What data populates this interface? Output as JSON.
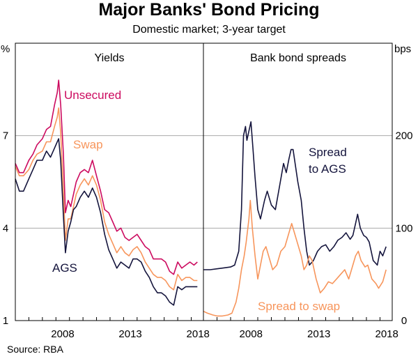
{
  "title": "Major Banks' Bond Pricing",
  "subtitle": "Domestic market; 3-year target",
  "source": "Source:   RBA",
  "chart_data": [
    {
      "type": "line",
      "panel_title": "Yields",
      "unit_label": "%",
      "ylim": [
        1,
        10
      ],
      "yticks": [
        1,
        4,
        7
      ],
      "xlim": [
        2005.0,
        2018.9
      ],
      "xticks": [
        2008,
        2013,
        2018
      ],
      "tick_labels": [
        "2008",
        "2013",
        "2018"
      ],
      "series": [
        {
          "name": "Unsecured",
          "label": "Unsecured",
          "color": "#cc0a5f",
          "points": [
            [
              2005.0,
              6.1
            ],
            [
              2005.3,
              5.8
            ],
            [
              2005.6,
              5.8
            ],
            [
              2006.0,
              6.2
            ],
            [
              2006.3,
              6.4
            ],
            [
              2006.6,
              6.7
            ],
            [
              2007.0,
              6.9
            ],
            [
              2007.3,
              7.2
            ],
            [
              2007.6,
              7.3
            ],
            [
              2007.9,
              8.0
            ],
            [
              2008.1,
              8.4
            ],
            [
              2008.2,
              8.8
            ],
            [
              2008.35,
              8.0
            ],
            [
              2008.55,
              6.4
            ],
            [
              2008.7,
              4.5
            ],
            [
              2008.9,
              4.9
            ],
            [
              2009.1,
              4.7
            ],
            [
              2009.3,
              5.1
            ],
            [
              2009.5,
              5.5
            ],
            [
              2009.8,
              5.8
            ],
            [
              2010.1,
              5.9
            ],
            [
              2010.4,
              5.8
            ],
            [
              2010.7,
              6.2
            ],
            [
              2011.0,
              5.7
            ],
            [
              2011.3,
              5.2
            ],
            [
              2011.6,
              4.6
            ],
            [
              2011.9,
              4.5
            ],
            [
              2012.2,
              4.2
            ],
            [
              2012.5,
              3.9
            ],
            [
              2012.8,
              4.0
            ],
            [
              2013.1,
              3.7
            ],
            [
              2013.4,
              3.6
            ],
            [
              2013.7,
              3.7
            ],
            [
              2014.0,
              3.8
            ],
            [
              2014.3,
              3.6
            ],
            [
              2014.6,
              3.4
            ],
            [
              2014.9,
              3.3
            ],
            [
              2015.2,
              3.0
            ],
            [
              2015.5,
              3.0
            ],
            [
              2015.8,
              3.0
            ],
            [
              2016.1,
              2.9
            ],
            [
              2016.4,
              2.6
            ],
            [
              2016.7,
              2.5
            ],
            [
              2017.0,
              2.9
            ],
            [
              2017.3,
              2.7
            ],
            [
              2017.6,
              2.8
            ],
            [
              2017.9,
              2.9
            ],
            [
              2018.2,
              2.8
            ],
            [
              2018.45,
              2.9
            ]
          ]
        },
        {
          "name": "Swap",
          "label": "Swap",
          "color": "#f7955b",
          "points": [
            [
              2005.0,
              6.0
            ],
            [
              2005.3,
              5.7
            ],
            [
              2005.6,
              5.7
            ],
            [
              2006.0,
              5.9
            ],
            [
              2006.3,
              6.2
            ],
            [
              2006.6,
              6.4
            ],
            [
              2007.0,
              6.5
            ],
            [
              2007.3,
              6.8
            ],
            [
              2007.6,
              6.8
            ],
            [
              2007.9,
              7.3
            ],
            [
              2008.1,
              7.6
            ],
            [
              2008.2,
              7.9
            ],
            [
              2008.35,
              7.1
            ],
            [
              2008.55,
              5.2
            ],
            [
              2008.7,
              3.6
            ],
            [
              2008.9,
              4.3
            ],
            [
              2009.1,
              4.3
            ],
            [
              2009.3,
              4.7
            ],
            [
              2009.5,
              5.1
            ],
            [
              2009.8,
              5.4
            ],
            [
              2010.1,
              5.6
            ],
            [
              2010.4,
              5.4
            ],
            [
              2010.7,
              5.7
            ],
            [
              2011.0,
              5.4
            ],
            [
              2011.3,
              4.9
            ],
            [
              2011.6,
              4.2
            ],
            [
              2011.9,
              3.8
            ],
            [
              2012.2,
              3.5
            ],
            [
              2012.5,
              3.2
            ],
            [
              2012.8,
              3.4
            ],
            [
              2013.1,
              3.2
            ],
            [
              2013.4,
              3.1
            ],
            [
              2013.7,
              3.3
            ],
            [
              2014.0,
              3.4
            ],
            [
              2014.3,
              3.2
            ],
            [
              2014.6,
              2.9
            ],
            [
              2014.9,
              2.7
            ],
            [
              2015.2,
              2.5
            ],
            [
              2015.5,
              2.4
            ],
            [
              2015.8,
              2.4
            ],
            [
              2016.1,
              2.3
            ],
            [
              2016.4,
              2.1
            ],
            [
              2016.7,
              2.0
            ],
            [
              2017.0,
              2.5
            ],
            [
              2017.3,
              2.3
            ],
            [
              2017.6,
              2.4
            ],
            [
              2017.9,
              2.4
            ],
            [
              2018.2,
              2.3
            ],
            [
              2018.45,
              2.3
            ]
          ]
        },
        {
          "name": "AGS",
          "label": "AGS",
          "color": "#14143c",
          "points": [
            [
              2005.0,
              5.6
            ],
            [
              2005.3,
              5.2
            ],
            [
              2005.6,
              5.2
            ],
            [
              2006.0,
              5.6
            ],
            [
              2006.3,
              5.9
            ],
            [
              2006.6,
              6.2
            ],
            [
              2007.0,
              6.2
            ],
            [
              2007.3,
              6.5
            ],
            [
              2007.6,
              6.3
            ],
            [
              2007.9,
              6.6
            ],
            [
              2008.1,
              6.8
            ],
            [
              2008.2,
              6.9
            ],
            [
              2008.35,
              6.2
            ],
            [
              2008.55,
              4.4
            ],
            [
              2008.7,
              3.2
            ],
            [
              2008.9,
              3.9
            ],
            [
              2009.1,
              4.2
            ],
            [
              2009.3,
              4.6
            ],
            [
              2009.5,
              4.7
            ],
            [
              2009.8,
              5.0
            ],
            [
              2010.1,
              5.2
            ],
            [
              2010.4,
              5.0
            ],
            [
              2010.7,
              5.3
            ],
            [
              2011.0,
              5.0
            ],
            [
              2011.3,
              4.5
            ],
            [
              2011.6,
              3.8
            ],
            [
              2011.9,
              3.3
            ],
            [
              2012.2,
              3.0
            ],
            [
              2012.5,
              2.7
            ],
            [
              2012.8,
              2.9
            ],
            [
              2013.1,
              2.8
            ],
            [
              2013.4,
              2.7
            ],
            [
              2013.7,
              3.0
            ],
            [
              2014.0,
              3.0
            ],
            [
              2014.3,
              2.9
            ],
            [
              2014.6,
              2.6
            ],
            [
              2014.9,
              2.4
            ],
            [
              2015.2,
              2.1
            ],
            [
              2015.5,
              1.9
            ],
            [
              2015.8,
              1.9
            ],
            [
              2016.1,
              1.8
            ],
            [
              2016.4,
              1.6
            ],
            [
              2016.7,
              1.5
            ],
            [
              2017.0,
              2.1
            ],
            [
              2017.3,
              2.0
            ],
            [
              2017.6,
              2.1
            ],
            [
              2017.9,
              2.1
            ],
            [
              2018.2,
              2.1
            ],
            [
              2018.45,
              2.1
            ]
          ]
        }
      ]
    },
    {
      "type": "line",
      "panel_title": "Bank bond spreads",
      "unit_label": "bps",
      "ylim": [
        0,
        300
      ],
      "yticks": [
        0,
        100,
        200
      ],
      "xlim": [
        2005.0,
        2018.9
      ],
      "xticks": [
        2008,
        2013,
        2018
      ],
      "tick_labels": [
        "2008",
        "2013",
        "2018"
      ],
      "series": [
        {
          "name": "Spread to AGS",
          "label": "Spread\nto AGS",
          "color": "#14143c",
          "points": [
            [
              2005.0,
              55
            ],
            [
              2005.5,
              55
            ],
            [
              2006.0,
              56
            ],
            [
              2006.5,
              57
            ],
            [
              2007.0,
              58
            ],
            [
              2007.3,
              60
            ],
            [
              2007.6,
              75
            ],
            [
              2007.8,
              120
            ],
            [
              2007.95,
              200
            ],
            [
              2008.1,
              210
            ],
            [
              2008.2,
              195
            ],
            [
              2008.35,
              205
            ],
            [
              2008.5,
              215
            ],
            [
              2008.65,
              185
            ],
            [
              2008.8,
              155
            ],
            [
              2009.0,
              120
            ],
            [
              2009.2,
              110
            ],
            [
              2009.5,
              130
            ],
            [
              2009.7,
              140
            ],
            [
              2010.0,
              125
            ],
            [
              2010.3,
              120
            ],
            [
              2010.6,
              145
            ],
            [
              2010.9,
              170
            ],
            [
              2011.1,
              160
            ],
            [
              2011.3,
              175
            ],
            [
              2011.45,
              185
            ],
            [
              2011.6,
              185
            ],
            [
              2011.75,
              170
            ],
            [
              2011.95,
              150
            ],
            [
              2012.2,
              130
            ],
            [
              2012.4,
              100
            ],
            [
              2012.6,
              75
            ],
            [
              2012.8,
              60
            ],
            [
              2013.1,
              65
            ],
            [
              2013.4,
              75
            ],
            [
              2013.7,
              80
            ],
            [
              2014.0,
              82
            ],
            [
              2014.3,
              75
            ],
            [
              2014.6,
              80
            ],
            [
              2014.9,
              87
            ],
            [
              2015.2,
              90
            ],
            [
              2015.5,
              95
            ],
            [
              2015.8,
              88
            ],
            [
              2016.0,
              92
            ],
            [
              2016.2,
              105
            ],
            [
              2016.35,
              115
            ],
            [
              2016.55,
              100
            ],
            [
              2016.8,
              92
            ],
            [
              2017.0,
              90
            ],
            [
              2017.2,
              85
            ],
            [
              2017.5,
              65
            ],
            [
              2017.8,
              60
            ],
            [
              2018.0,
              75
            ],
            [
              2018.2,
              70
            ],
            [
              2018.45,
              80
            ]
          ]
        },
        {
          "name": "Spread to swap",
          "label": "Spread to swap",
          "color": "#f7955b",
          "points": [
            [
              2005.0,
              10
            ],
            [
              2005.3,
              8
            ],
            [
              2005.7,
              6
            ],
            [
              2006.0,
              5
            ],
            [
              2006.4,
              5
            ],
            [
              2006.8,
              6
            ],
            [
              2007.1,
              8
            ],
            [
              2007.4,
              20
            ],
            [
              2007.6,
              35
            ],
            [
              2007.8,
              55
            ],
            [
              2008.0,
              70
            ],
            [
              2008.15,
              85
            ],
            [
              2008.35,
              110
            ],
            [
              2008.45,
              130
            ],
            [
              2008.6,
              100
            ],
            [
              2008.8,
              70
            ],
            [
              2009.0,
              45
            ],
            [
              2009.2,
              60
            ],
            [
              2009.4,
              75
            ],
            [
              2009.6,
              80
            ],
            [
              2009.8,
              70
            ],
            [
              2010.1,
              55
            ],
            [
              2010.4,
              60
            ],
            [
              2010.7,
              75
            ],
            [
              2011.0,
              80
            ],
            [
              2011.3,
              95
            ],
            [
              2011.5,
              105
            ],
            [
              2011.7,
              95
            ],
            [
              2011.9,
              85
            ],
            [
              2012.2,
              70
            ],
            [
              2012.4,
              55
            ],
            [
              2012.6,
              60
            ],
            [
              2012.8,
              70
            ],
            [
              2013.0,
              65
            ],
            [
              2013.3,
              45
            ],
            [
              2013.6,
              30
            ],
            [
              2013.9,
              35
            ],
            [
              2014.2,
              42
            ],
            [
              2014.5,
              40
            ],
            [
              2014.8,
              45
            ],
            [
              2015.1,
              50
            ],
            [
              2015.4,
              55
            ],
            [
              2015.7,
              45
            ],
            [
              2016.0,
              60
            ],
            [
              2016.2,
              70
            ],
            [
              2016.4,
              75
            ],
            [
              2016.6,
              65
            ],
            [
              2016.9,
              58
            ],
            [
              2017.1,
              60
            ],
            [
              2017.4,
              45
            ],
            [
              2017.7,
              40
            ],
            [
              2017.9,
              35
            ],
            [
              2018.2,
              42
            ],
            [
              2018.45,
              55
            ]
          ]
        }
      ]
    }
  ]
}
